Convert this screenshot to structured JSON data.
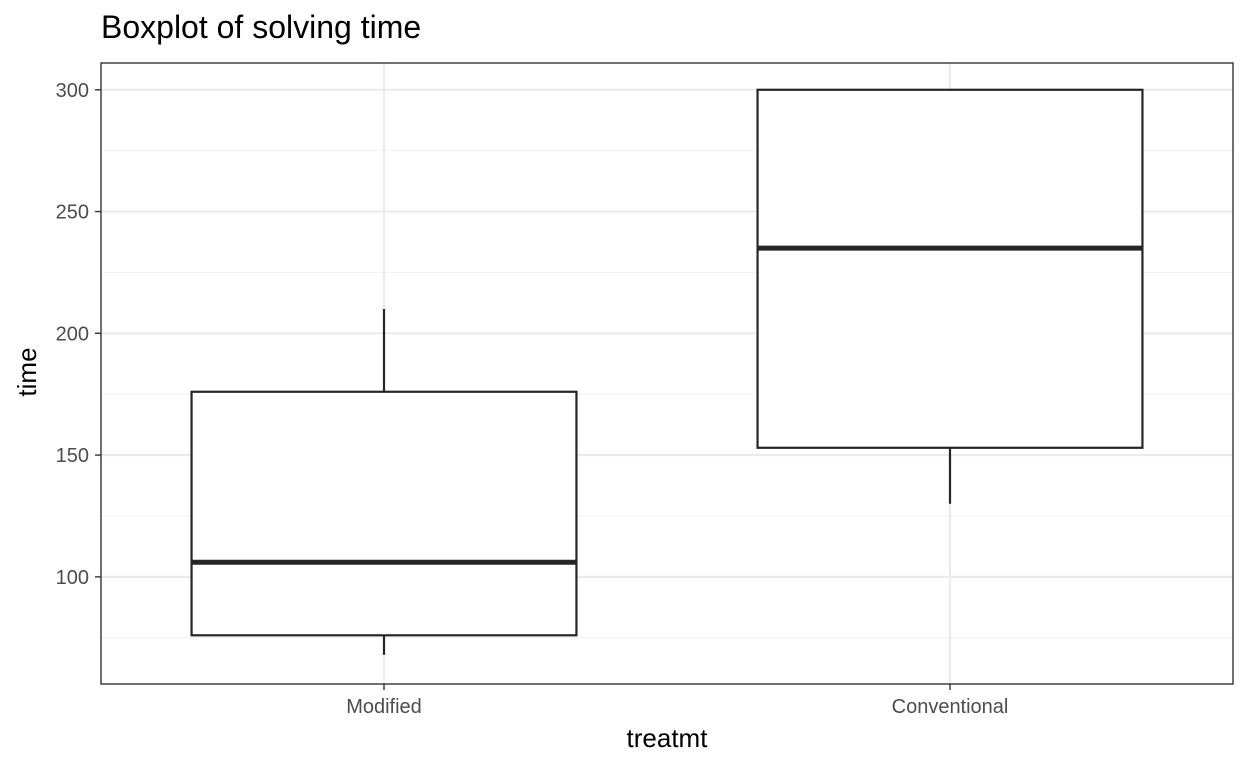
{
  "chart_data": {
    "type": "boxplot",
    "title": "Boxplot of solving time",
    "xlabel": "treatmt",
    "ylabel": "time",
    "categories": [
      "Modified",
      "Conventional"
    ],
    "boxes": [
      {
        "category": "Modified",
        "whisker_low": 68,
        "q1": 76,
        "median": 106,
        "q3": 176,
        "whisker_high": 210
      },
      {
        "category": "Conventional",
        "whisker_low": 130,
        "q1": 153,
        "median": 235,
        "q3": 300,
        "whisker_high": 300
      }
    ],
    "ylim": [
      56,
      311
    ],
    "yticks": [
      100,
      150,
      200,
      250,
      300
    ],
    "yminor": [
      75,
      125,
      175,
      225,
      275
    ],
    "grid": true,
    "colors": {
      "box_line": "#262626",
      "grid_major": "#ebebeb",
      "grid_minor": "#f2f2f2",
      "panel_border": "#333333"
    }
  }
}
